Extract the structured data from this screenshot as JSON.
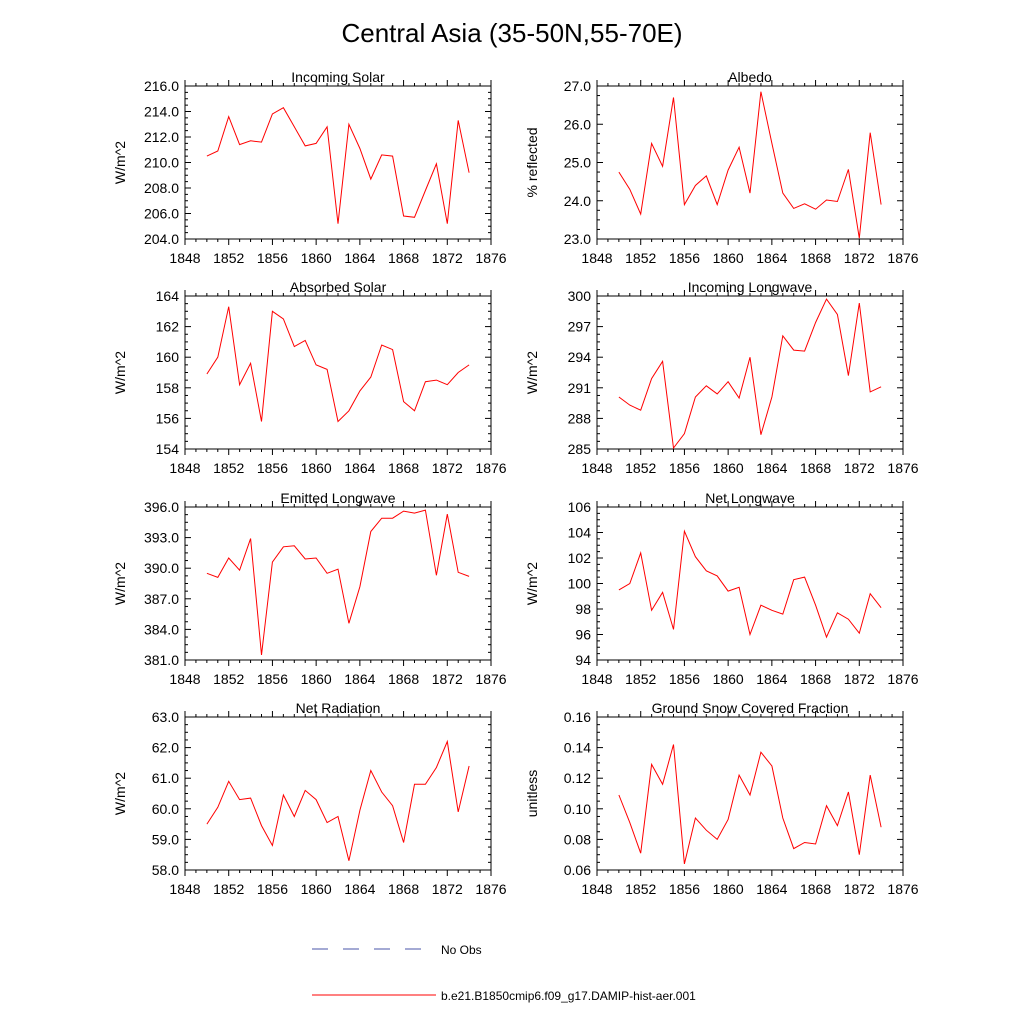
{
  "title": "Central Asia (35-50N,55-70E)",
  "legend": {
    "items": [
      {
        "label": "No Obs",
        "color": "#4a55a8",
        "dashed": true
      },
      {
        "label": "b.e21.B1850cmip6.f09_g17.DAMIP-hist-aer.001",
        "color": "#ff0000",
        "dashed": false
      }
    ]
  },
  "chart_data": [
    {
      "type": "line",
      "title": "Incoming Solar",
      "ylabel": "W/m^2",
      "xlim": [
        1848,
        1876
      ],
      "ylim": [
        204,
        216
      ],
      "xticks": [
        "1848",
        "1852",
        "1856",
        "1860",
        "1864",
        "1868",
        "1872",
        "1876"
      ],
      "yticks": [
        "204.0",
        "206.0",
        "208.0",
        "210.0",
        "212.0",
        "214.0",
        "216.0"
      ],
      "x": [
        1850,
        1851,
        1852,
        1853,
        1854,
        1855,
        1856,
        1857,
        1858,
        1859,
        1860,
        1861,
        1862,
        1863,
        1864,
        1865,
        1866,
        1867,
        1868,
        1869,
        1870,
        1871,
        1872,
        1873,
        1874
      ],
      "series": [
        {
          "name": "b.e21.B1850cmip6.f09_g17.DAMIP-hist-aer.001",
          "values": [
            210.5,
            210.9,
            213.6,
            211.4,
            211.7,
            211.6,
            213.8,
            214.3,
            212.8,
            211.3,
            211.5,
            212.8,
            205.2,
            213.0,
            211.1,
            208.7,
            210.6,
            210.5,
            205.8,
            205.7,
            207.8,
            209.9,
            205.2,
            213.3,
            209.2
          ]
        }
      ]
    },
    {
      "type": "line",
      "title": "Albedo",
      "ylabel": "% reflected",
      "xlim": [
        1848,
        1876
      ],
      "ylim": [
        23,
        27
      ],
      "xticks": [
        "1848",
        "1852",
        "1856",
        "1860",
        "1864",
        "1868",
        "1872",
        "1876"
      ],
      "yticks": [
        "23.0",
        "24.0",
        "25.0",
        "26.0",
        "27.0"
      ],
      "x": [
        1850,
        1851,
        1852,
        1853,
        1854,
        1855,
        1856,
        1857,
        1858,
        1859,
        1860,
        1861,
        1862,
        1863,
        1864,
        1865,
        1866,
        1867,
        1868,
        1869,
        1870,
        1871,
        1872,
        1873,
        1874
      ],
      "series": [
        {
          "name": "b.e21.B1850cmip6.f09_g17.DAMIP-hist-aer.001",
          "values": [
            24.75,
            24.3,
            23.65,
            25.5,
            24.9,
            26.7,
            23.9,
            24.4,
            24.65,
            23.9,
            24.8,
            25.4,
            24.2,
            26.85,
            25.5,
            24.2,
            23.8,
            23.92,
            23.78,
            24.02,
            23.98,
            24.82,
            23.02,
            25.78,
            23.9
          ]
        }
      ]
    },
    {
      "type": "line",
      "title": "Absorbed Solar",
      "ylabel": "W/m^2",
      "xlim": [
        1848,
        1876
      ],
      "ylim": [
        154,
        164
      ],
      "xticks": [
        "1848",
        "1852",
        "1856",
        "1860",
        "1864",
        "1868",
        "1872",
        "1876"
      ],
      "yticks": [
        "154",
        "156",
        "158",
        "160",
        "162",
        "164"
      ],
      "x": [
        1850,
        1851,
        1852,
        1853,
        1854,
        1855,
        1856,
        1857,
        1858,
        1859,
        1860,
        1861,
        1862,
        1863,
        1864,
        1865,
        1866,
        1867,
        1868,
        1869,
        1870,
        1871,
        1872,
        1873,
        1874
      ],
      "series": [
        {
          "name": "b.e21.B1850cmip6.f09_g17.DAMIP-hist-aer.001",
          "values": [
            158.9,
            160.0,
            163.3,
            158.2,
            159.6,
            155.8,
            163.0,
            162.5,
            160.7,
            161.1,
            159.5,
            159.2,
            155.8,
            156.5,
            157.8,
            158.7,
            160.8,
            160.5,
            157.1,
            156.5,
            158.4,
            158.5,
            158.2,
            159.0,
            159.5
          ]
        }
      ]
    },
    {
      "type": "line",
      "title": "Incoming Longwave",
      "ylabel": "W/m^2",
      "xlim": [
        1848,
        1876
      ],
      "ylim": [
        285,
        300
      ],
      "xticks": [
        "1848",
        "1852",
        "1856",
        "1860",
        "1864",
        "1868",
        "1872",
        "1876"
      ],
      "yticks": [
        "285",
        "288",
        "291",
        "294",
        "297",
        "300"
      ],
      "x": [
        1850,
        1851,
        1852,
        1853,
        1854,
        1855,
        1856,
        1857,
        1858,
        1859,
        1860,
        1861,
        1862,
        1863,
        1864,
        1865,
        1866,
        1867,
        1868,
        1869,
        1870,
        1871,
        1872,
        1873,
        1874
      ],
      "series": [
        {
          "name": "b.e21.B1850cmip6.f09_g17.DAMIP-hist-aer.001",
          "values": [
            290.1,
            289.3,
            288.8,
            291.9,
            293.6,
            285.1,
            286.5,
            290.1,
            291.2,
            290.4,
            291.6,
            290.0,
            294.0,
            286.4,
            290.1,
            296.1,
            294.7,
            294.6,
            297.4,
            299.7,
            298.2,
            292.2,
            299.3,
            290.6,
            291.1
          ]
        }
      ]
    },
    {
      "type": "line",
      "title": "Emitted Longwave",
      "ylabel": "W/m^2",
      "xlim": [
        1848,
        1876
      ],
      "ylim": [
        381,
        396
      ],
      "xticks": [
        "1848",
        "1852",
        "1856",
        "1860",
        "1864",
        "1868",
        "1872",
        "1876"
      ],
      "yticks": [
        "381.0",
        "384.0",
        "387.0",
        "390.0",
        "393.0",
        "396.0"
      ],
      "x": [
        1850,
        1851,
        1852,
        1853,
        1854,
        1855,
        1856,
        1857,
        1858,
        1859,
        1860,
        1861,
        1862,
        1863,
        1864,
        1865,
        1866,
        1867,
        1868,
        1869,
        1870,
        1871,
        1872,
        1873,
        1874
      ],
      "series": [
        {
          "name": "b.e21.B1850cmip6.f09_g17.DAMIP-hist-aer.001",
          "values": [
            389.5,
            389.1,
            391.0,
            389.8,
            392.9,
            381.5,
            390.6,
            392.1,
            392.2,
            390.9,
            391.0,
            389.5,
            389.9,
            384.6,
            388.2,
            393.6,
            394.9,
            394.9,
            395.6,
            395.4,
            395.7,
            389.3,
            395.3,
            389.6,
            389.2
          ]
        }
      ]
    },
    {
      "type": "line",
      "title": "Net Longwave",
      "ylabel": "W/m^2",
      "xlim": [
        1848,
        1876
      ],
      "ylim": [
        94,
        106
      ],
      "xticks": [
        "1848",
        "1852",
        "1856",
        "1860",
        "1864",
        "1868",
        "1872",
        "1876"
      ],
      "yticks": [
        "94",
        "96",
        "98",
        "100",
        "102",
        "104",
        "106"
      ],
      "x": [
        1850,
        1851,
        1852,
        1853,
        1854,
        1855,
        1856,
        1857,
        1858,
        1859,
        1860,
        1861,
        1862,
        1863,
        1864,
        1865,
        1866,
        1867,
        1868,
        1869,
        1870,
        1871,
        1872,
        1873,
        1874
      ],
      "series": [
        {
          "name": "b.e21.B1850cmip6.f09_g17.DAMIP-hist-aer.001",
          "values": [
            99.5,
            100.0,
            102.4,
            97.9,
            99.3,
            96.4,
            104.1,
            102.1,
            101.0,
            100.6,
            99.4,
            99.7,
            96.0,
            98.3,
            97.9,
            97.6,
            100.3,
            100.5,
            98.3,
            95.8,
            97.7,
            97.2,
            96.1,
            99.2,
            98.1
          ]
        }
      ]
    },
    {
      "type": "line",
      "title": "Net Radiation",
      "ylabel": "W/m^2",
      "xlim": [
        1848,
        1876
      ],
      "ylim": [
        58,
        63
      ],
      "xticks": [
        "1848",
        "1852",
        "1856",
        "1860",
        "1864",
        "1868",
        "1872",
        "1876"
      ],
      "yticks": [
        "58.0",
        "59.0",
        "60.0",
        "61.0",
        "62.0",
        "63.0"
      ],
      "x": [
        1850,
        1851,
        1852,
        1853,
        1854,
        1855,
        1856,
        1857,
        1858,
        1859,
        1860,
        1861,
        1862,
        1863,
        1864,
        1865,
        1866,
        1867,
        1868,
        1869,
        1870,
        1871,
        1872,
        1873,
        1874
      ],
      "series": [
        {
          "name": "b.e21.B1850cmip6.f09_g17.DAMIP-hist-aer.001",
          "values": [
            59.5,
            60.05,
            60.9,
            60.3,
            60.35,
            59.45,
            58.8,
            60.45,
            59.75,
            60.6,
            60.3,
            59.55,
            59.75,
            58.3,
            59.95,
            61.25,
            60.55,
            60.1,
            58.9,
            60.8,
            60.8,
            61.35,
            62.2,
            59.9,
            61.4
          ]
        }
      ]
    },
    {
      "type": "line",
      "title": "Ground Snow Covered Fraction",
      "ylabel": "unitless",
      "xlim": [
        1848,
        1876
      ],
      "ylim": [
        0.06,
        0.16
      ],
      "xticks": [
        "1848",
        "1852",
        "1856",
        "1860",
        "1864",
        "1868",
        "1872",
        "1876"
      ],
      "yticks": [
        "0.06",
        "0.08",
        "0.10",
        "0.12",
        "0.14",
        "0.16"
      ],
      "x": [
        1850,
        1851,
        1852,
        1853,
        1854,
        1855,
        1856,
        1857,
        1858,
        1859,
        1860,
        1861,
        1862,
        1863,
        1864,
        1865,
        1866,
        1867,
        1868,
        1869,
        1870,
        1871,
        1872,
        1873,
        1874
      ],
      "series": [
        {
          "name": "b.e21.B1850cmip6.f09_g17.DAMIP-hist-aer.001",
          "values": [
            0.109,
            0.091,
            0.071,
            0.129,
            0.116,
            0.142,
            0.064,
            0.094,
            0.086,
            0.08,
            0.093,
            0.122,
            0.109,
            0.137,
            0.128,
            0.094,
            0.074,
            0.078,
            0.077,
            0.102,
            0.089,
            0.111,
            0.07,
            0.122,
            0.088
          ]
        }
      ]
    }
  ]
}
